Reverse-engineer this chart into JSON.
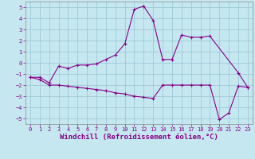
{
  "xlabel": "Windchill (Refroidissement éolien,°C)",
  "background_color": "#c5e8f0",
  "grid_color": "#9ec8d8",
  "line_color": "#880088",
  "ylim": [
    -5.5,
    5.5
  ],
  "xlim": [
    -0.5,
    23.5
  ],
  "yticks": [
    -5,
    -4,
    -3,
    -2,
    -1,
    0,
    1,
    2,
    3,
    4,
    5
  ],
  "xticks": [
    0,
    1,
    2,
    3,
    4,
    5,
    6,
    7,
    8,
    9,
    10,
    11,
    12,
    13,
    14,
    15,
    16,
    17,
    18,
    19,
    20,
    21,
    22,
    23
  ],
  "series1_x": [
    0,
    1,
    2,
    3,
    4,
    5,
    6,
    7,
    8,
    9,
    10,
    11,
    12,
    13,
    14,
    15,
    16,
    17,
    18,
    19,
    22,
    23
  ],
  "series1_y": [
    -1.3,
    -1.3,
    -1.8,
    -0.3,
    -0.5,
    -0.2,
    -0.2,
    -0.1,
    0.3,
    0.7,
    1.7,
    4.8,
    5.1,
    3.8,
    0.3,
    0.3,
    2.5,
    2.3,
    2.3,
    2.4,
    -0.9,
    -2.2
  ],
  "series2_x": [
    0,
    1,
    2,
    3,
    4,
    5,
    6,
    7,
    8,
    9,
    10,
    11,
    12,
    13,
    14,
    15,
    16,
    17,
    18,
    19,
    20,
    21,
    22,
    23
  ],
  "series2_y": [
    -1.3,
    -1.5,
    -2.0,
    -2.0,
    -2.1,
    -2.2,
    -2.3,
    -2.4,
    -2.5,
    -2.7,
    -2.8,
    -3.0,
    -3.1,
    -3.2,
    -2.0,
    -2.0,
    -2.0,
    -2.0,
    -2.0,
    -2.0,
    -5.1,
    -4.5,
    -2.1,
    -2.2
  ],
  "tick_fontsize": 5.0,
  "xlabel_fontsize": 6.5
}
